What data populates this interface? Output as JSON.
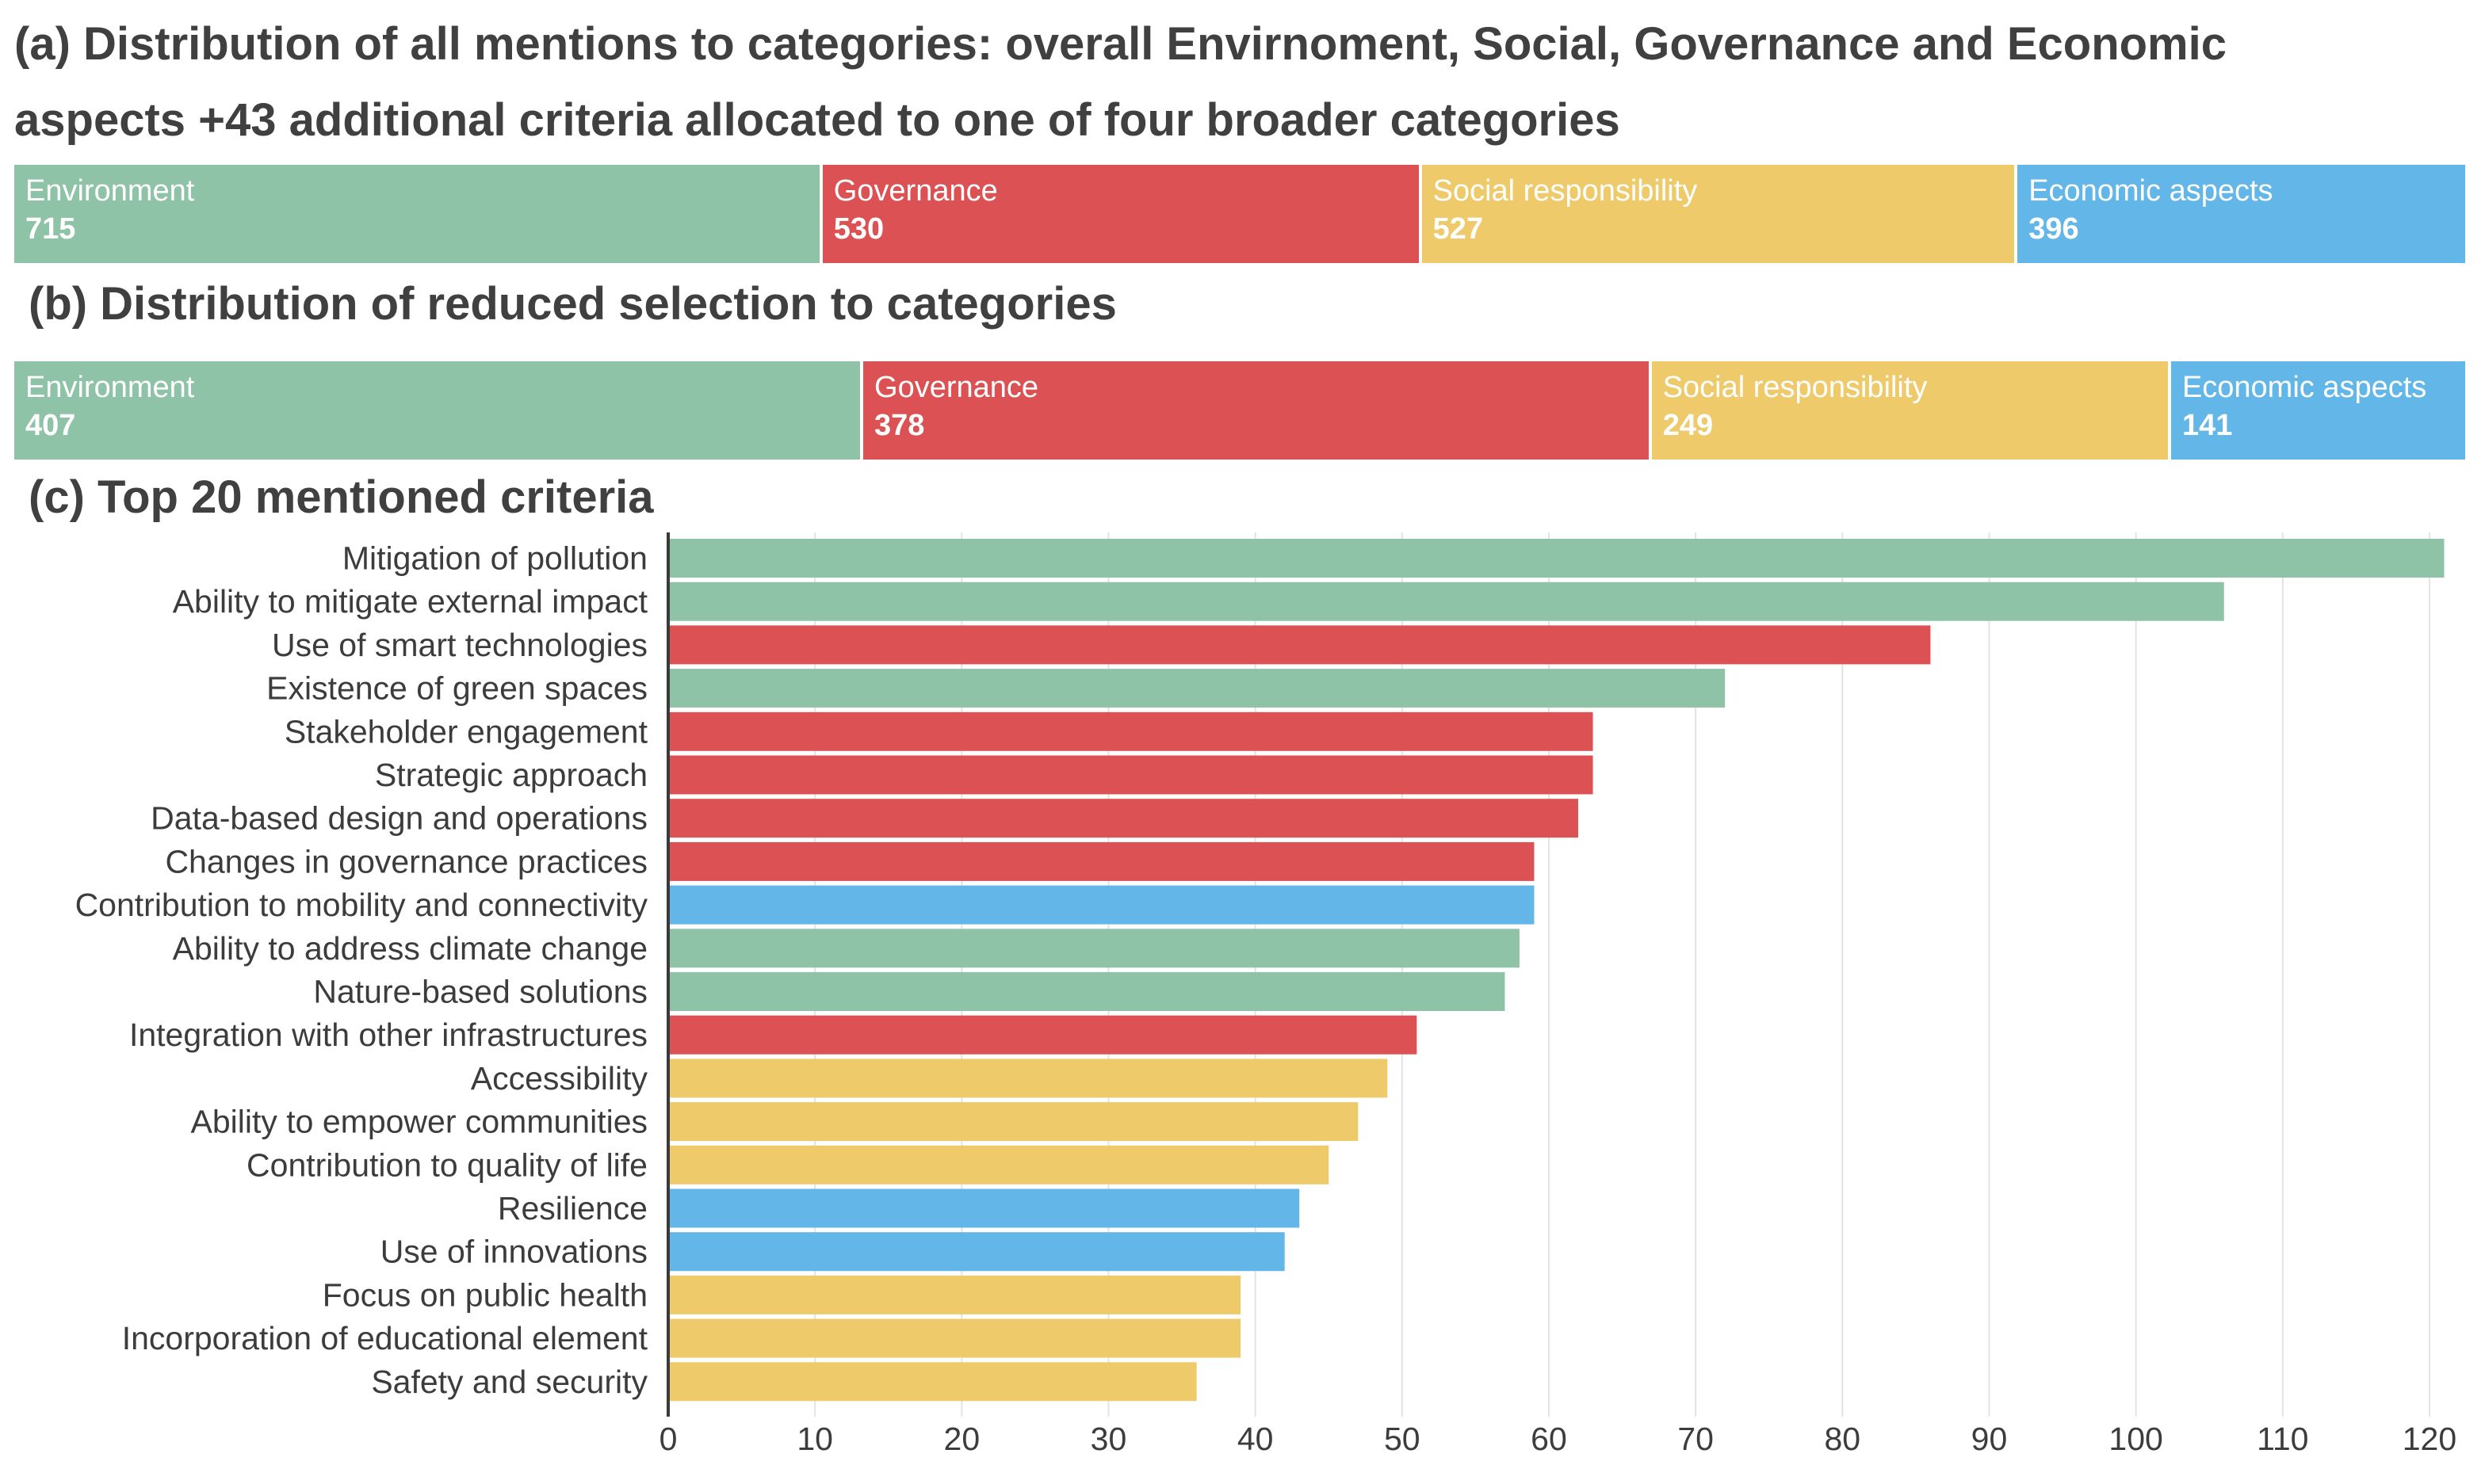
{
  "colors": {
    "Environment": "#8fc3a7",
    "Governance": "#dc5153",
    "Social responsibility": "#efca6b",
    "Economic aspects": "#62b7e8",
    "gridline": "#e3e3e3",
    "axis": "#3a3a3a"
  },
  "panel_a": {
    "title_line1": "(a) Distribution of all mentions to categories: overall Envirnoment, Social, Governance and Economic",
    "title_line2": "aspects +43 additional criteria allocated to one of four broader categories",
    "segments": [
      {
        "label": "Environment",
        "value": 715
      },
      {
        "label": "Governance",
        "value": 530
      },
      {
        "label": "Social responsibility",
        "value": 527
      },
      {
        "label": "Economic aspects",
        "value": 396
      }
    ]
  },
  "panel_b": {
    "title": "(b) Distribution of reduced selection to categories",
    "segments": [
      {
        "label": "Environment",
        "value": 407
      },
      {
        "label": "Governance",
        "value": 378
      },
      {
        "label": "Social responsibility",
        "value": 249
      },
      {
        "label": "Economic aspects",
        "value": 141
      }
    ]
  },
  "panel_c": {
    "title": "(c) Top 20 mentioned criteria"
  },
  "chart_data": {
    "type": "bar",
    "orientation": "horizontal",
    "title": "(c) Top 20 mentioned criteria",
    "xlim": [
      0,
      122
    ],
    "xticks": [
      0,
      10,
      20,
      30,
      40,
      50,
      60,
      70,
      80,
      90,
      100,
      110,
      120
    ],
    "grid": true,
    "categories": [
      "Mitigation of pollution",
      "Ability to mitigate external impact",
      "Use of smart technologies",
      "Existence of green spaces",
      "Stakeholder engagement",
      "Strategic approach",
      "Data-based design and operations",
      "Changes in governance practices",
      "Contribution to mobility and connectivity",
      "Ability to address climate change",
      "Nature-based solutions",
      "Integration with other infrastructures",
      "Accessibility",
      "Ability to empower communities",
      "Contribution to quality of life",
      "Resilience",
      "Use of innovations",
      "Focus on public health",
      "Incorporation of educational element",
      "Safety and security"
    ],
    "values": [
      121,
      106,
      86,
      72,
      63,
      63,
      62,
      59,
      59,
      58,
      57,
      51,
      49,
      47,
      45,
      43,
      42,
      39,
      39,
      36
    ],
    "groups": [
      "Environment",
      "Environment",
      "Governance",
      "Environment",
      "Governance",
      "Governance",
      "Governance",
      "Governance",
      "Economic aspects",
      "Environment",
      "Environment",
      "Governance",
      "Social responsibility",
      "Social responsibility",
      "Social responsibility",
      "Economic aspects",
      "Economic aspects",
      "Social responsibility",
      "Social responsibility",
      "Social responsibility"
    ]
  }
}
